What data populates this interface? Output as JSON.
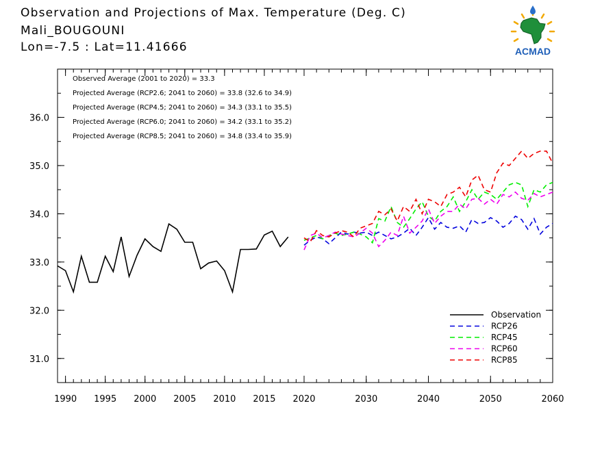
{
  "title": {
    "line1": "Observation and Projections of Max. Temperature (Deg. C)",
    "line2": "Mali_BOUGOUNI",
    "line3": "Lon=-7.5 : Lat=11.41666"
  },
  "logo": {
    "icon": "acmad-africa-logo",
    "text": "ACMAD"
  },
  "annotations": [
    "Observed Average (2001 to 2020) = 33.3",
    "Projected Average (RCP2.6; 2041 to 2060) = 33.8 (32.6 to 34.9)",
    "Projected Average (RCP4.5; 2041 to 2060) = 34.3 (33.1 to 35.5)",
    "Projected Average (RCP6.0; 2041 to 2060) = 34.2 (33.1 to 35.2)",
    "Projected Average (RCP8.5; 2041 to 2060) = 34.8 (33.4 to 35.9)"
  ],
  "chart_data": {
    "type": "line",
    "xlim": [
      1989,
      2060
    ],
    "ylim": [
      30.5,
      37.0
    ],
    "xticks": [
      "1990",
      "1995",
      "2000",
      "2005",
      "2010",
      "2015",
      "2020",
      "2030",
      "2040",
      "2050",
      "2060"
    ],
    "xtick_values": [
      1990,
      1995,
      2000,
      2005,
      2010,
      2015,
      2020,
      2030,
      2040,
      2050,
      2060
    ],
    "yticks": [
      "31.0",
      "32.0",
      "33.0",
      "34.0",
      "35.0",
      "36.0"
    ],
    "ytick_values": [
      31.0,
      32.0,
      33.0,
      34.0,
      35.0,
      36.0
    ],
    "legend_position": "bottom-right",
    "series": [
      {
        "name": "Observation",
        "color": "#000000",
        "dash": "solid",
        "x": [
          1989,
          1990,
          1991,
          1992,
          1993,
          1994,
          1995,
          1996,
          1997,
          1998,
          1999,
          2000,
          2001,
          2002,
          2003,
          2004,
          2005,
          2006,
          2007,
          2008,
          2009,
          2010,
          2011,
          2012,
          2013,
          2014,
          2015,
          2016,
          2017,
          2018,
          2019,
          2020
        ],
        "y": [
          32.92,
          32.82,
          32.38,
          33.12,
          32.58,
          32.58,
          33.12,
          32.8,
          33.52,
          32.7,
          33.14,
          33.48,
          33.32,
          33.22,
          33.79,
          33.68,
          33.41,
          33.41,
          32.86,
          32.98,
          33.02,
          32.82,
          32.38,
          33.26,
          33.26,
          33.27,
          33.56,
          33.64,
          33.32,
          33.52,
          null,
          null
        ]
      },
      {
        "name": "RCP26",
        "color": "#0000dd",
        "dash": "dashed",
        "x": [
          2020,
          2021,
          2022,
          2023,
          2024,
          2025,
          2026,
          2027,
          2028,
          2029,
          2030,
          2031,
          2032,
          2033,
          2034,
          2035,
          2036,
          2037,
          2038,
          2039,
          2040,
          2041,
          2042,
          2043,
          2044,
          2045,
          2046,
          2047,
          2048,
          2049,
          2050,
          2051,
          2052,
          2053,
          2054,
          2055,
          2056,
          2057,
          2058,
          2059,
          2060
        ],
        "y": [
          33.35,
          33.45,
          33.52,
          33.48,
          33.38,
          33.5,
          33.62,
          33.58,
          33.62,
          33.6,
          33.62,
          33.55,
          33.62,
          33.55,
          33.48,
          33.52,
          33.6,
          33.7,
          33.55,
          33.72,
          33.92,
          33.68,
          33.82,
          33.72,
          33.7,
          33.75,
          33.62,
          33.88,
          33.8,
          33.82,
          33.92,
          33.85,
          33.72,
          33.8,
          33.95,
          33.88,
          33.68,
          33.9,
          33.58,
          33.72,
          33.8
        ]
      },
      {
        "name": "RCP45",
        "color": "#00ee00",
        "dash": "dashed",
        "x": [
          2020,
          2021,
          2022,
          2023,
          2024,
          2025,
          2026,
          2027,
          2028,
          2029,
          2030,
          2031,
          2032,
          2033,
          2034,
          2035,
          2036,
          2037,
          2038,
          2039,
          2040,
          2041,
          2042,
          2043,
          2044,
          2045,
          2046,
          2047,
          2048,
          2049,
          2050,
          2051,
          2052,
          2053,
          2054,
          2055,
          2056,
          2057,
          2058,
          2059,
          2060
        ],
        "y": [
          33.45,
          33.5,
          33.55,
          33.48,
          33.55,
          33.6,
          33.55,
          33.58,
          33.62,
          33.58,
          33.52,
          33.4,
          33.9,
          33.85,
          34.15,
          33.82,
          33.72,
          33.9,
          34.1,
          34.25,
          33.95,
          33.85,
          34.05,
          34.15,
          34.35,
          34.05,
          34.25,
          34.5,
          34.3,
          34.45,
          34.4,
          34.3,
          34.45,
          34.6,
          34.65,
          34.6,
          34.15,
          34.5,
          34.45,
          34.6,
          34.65
        ]
      },
      {
        "name": "RCP60",
        "color": "#ee00ee",
        "dash": "dashed",
        "x": [
          2020,
          2021,
          2022,
          2023,
          2024,
          2025,
          2026,
          2027,
          2028,
          2029,
          2030,
          2031,
          2032,
          2033,
          2034,
          2035,
          2036,
          2037,
          2038,
          2039,
          2040,
          2041,
          2042,
          2043,
          2044,
          2045,
          2046,
          2047,
          2048,
          2049,
          2050,
          2051,
          2052,
          2053,
          2054,
          2055,
          2056,
          2057,
          2058,
          2059,
          2060
        ],
        "y": [
          33.25,
          33.55,
          33.6,
          33.5,
          33.55,
          33.62,
          33.58,
          33.55,
          33.52,
          33.6,
          33.7,
          33.6,
          33.32,
          33.45,
          33.62,
          33.55,
          33.95,
          33.6,
          33.72,
          33.85,
          34.1,
          33.8,
          33.95,
          34.05,
          34.05,
          34.2,
          34.1,
          34.3,
          34.32,
          34.2,
          34.3,
          34.2,
          34.4,
          34.35,
          34.45,
          34.32,
          34.28,
          34.42,
          34.35,
          34.4,
          34.45
        ]
      },
      {
        "name": "RCP85",
        "color": "#ee0000",
        "dash": "dashed",
        "x": [
          2020,
          2021,
          2022,
          2023,
          2024,
          2025,
          2026,
          2027,
          2028,
          2029,
          2030,
          2031,
          2032,
          2033,
          2034,
          2035,
          2036,
          2037,
          2038,
          2039,
          2040,
          2041,
          2042,
          2043,
          2044,
          2045,
          2046,
          2047,
          2048,
          2049,
          2050,
          2051,
          2052,
          2053,
          2054,
          2055,
          2056,
          2057,
          2058,
          2059,
          2060
        ],
        "y": [
          33.5,
          33.42,
          33.65,
          33.55,
          33.52,
          33.6,
          33.65,
          33.62,
          33.52,
          33.7,
          33.75,
          33.8,
          34.05,
          33.98,
          34.1,
          33.85,
          34.15,
          34.05,
          34.3,
          34.0,
          34.3,
          34.25,
          34.15,
          34.4,
          34.45,
          34.55,
          34.35,
          34.7,
          34.8,
          34.5,
          34.45,
          34.85,
          35.05,
          35.0,
          35.15,
          35.3,
          35.15,
          35.25,
          35.3,
          35.3,
          35.05
        ]
      }
    ]
  }
}
